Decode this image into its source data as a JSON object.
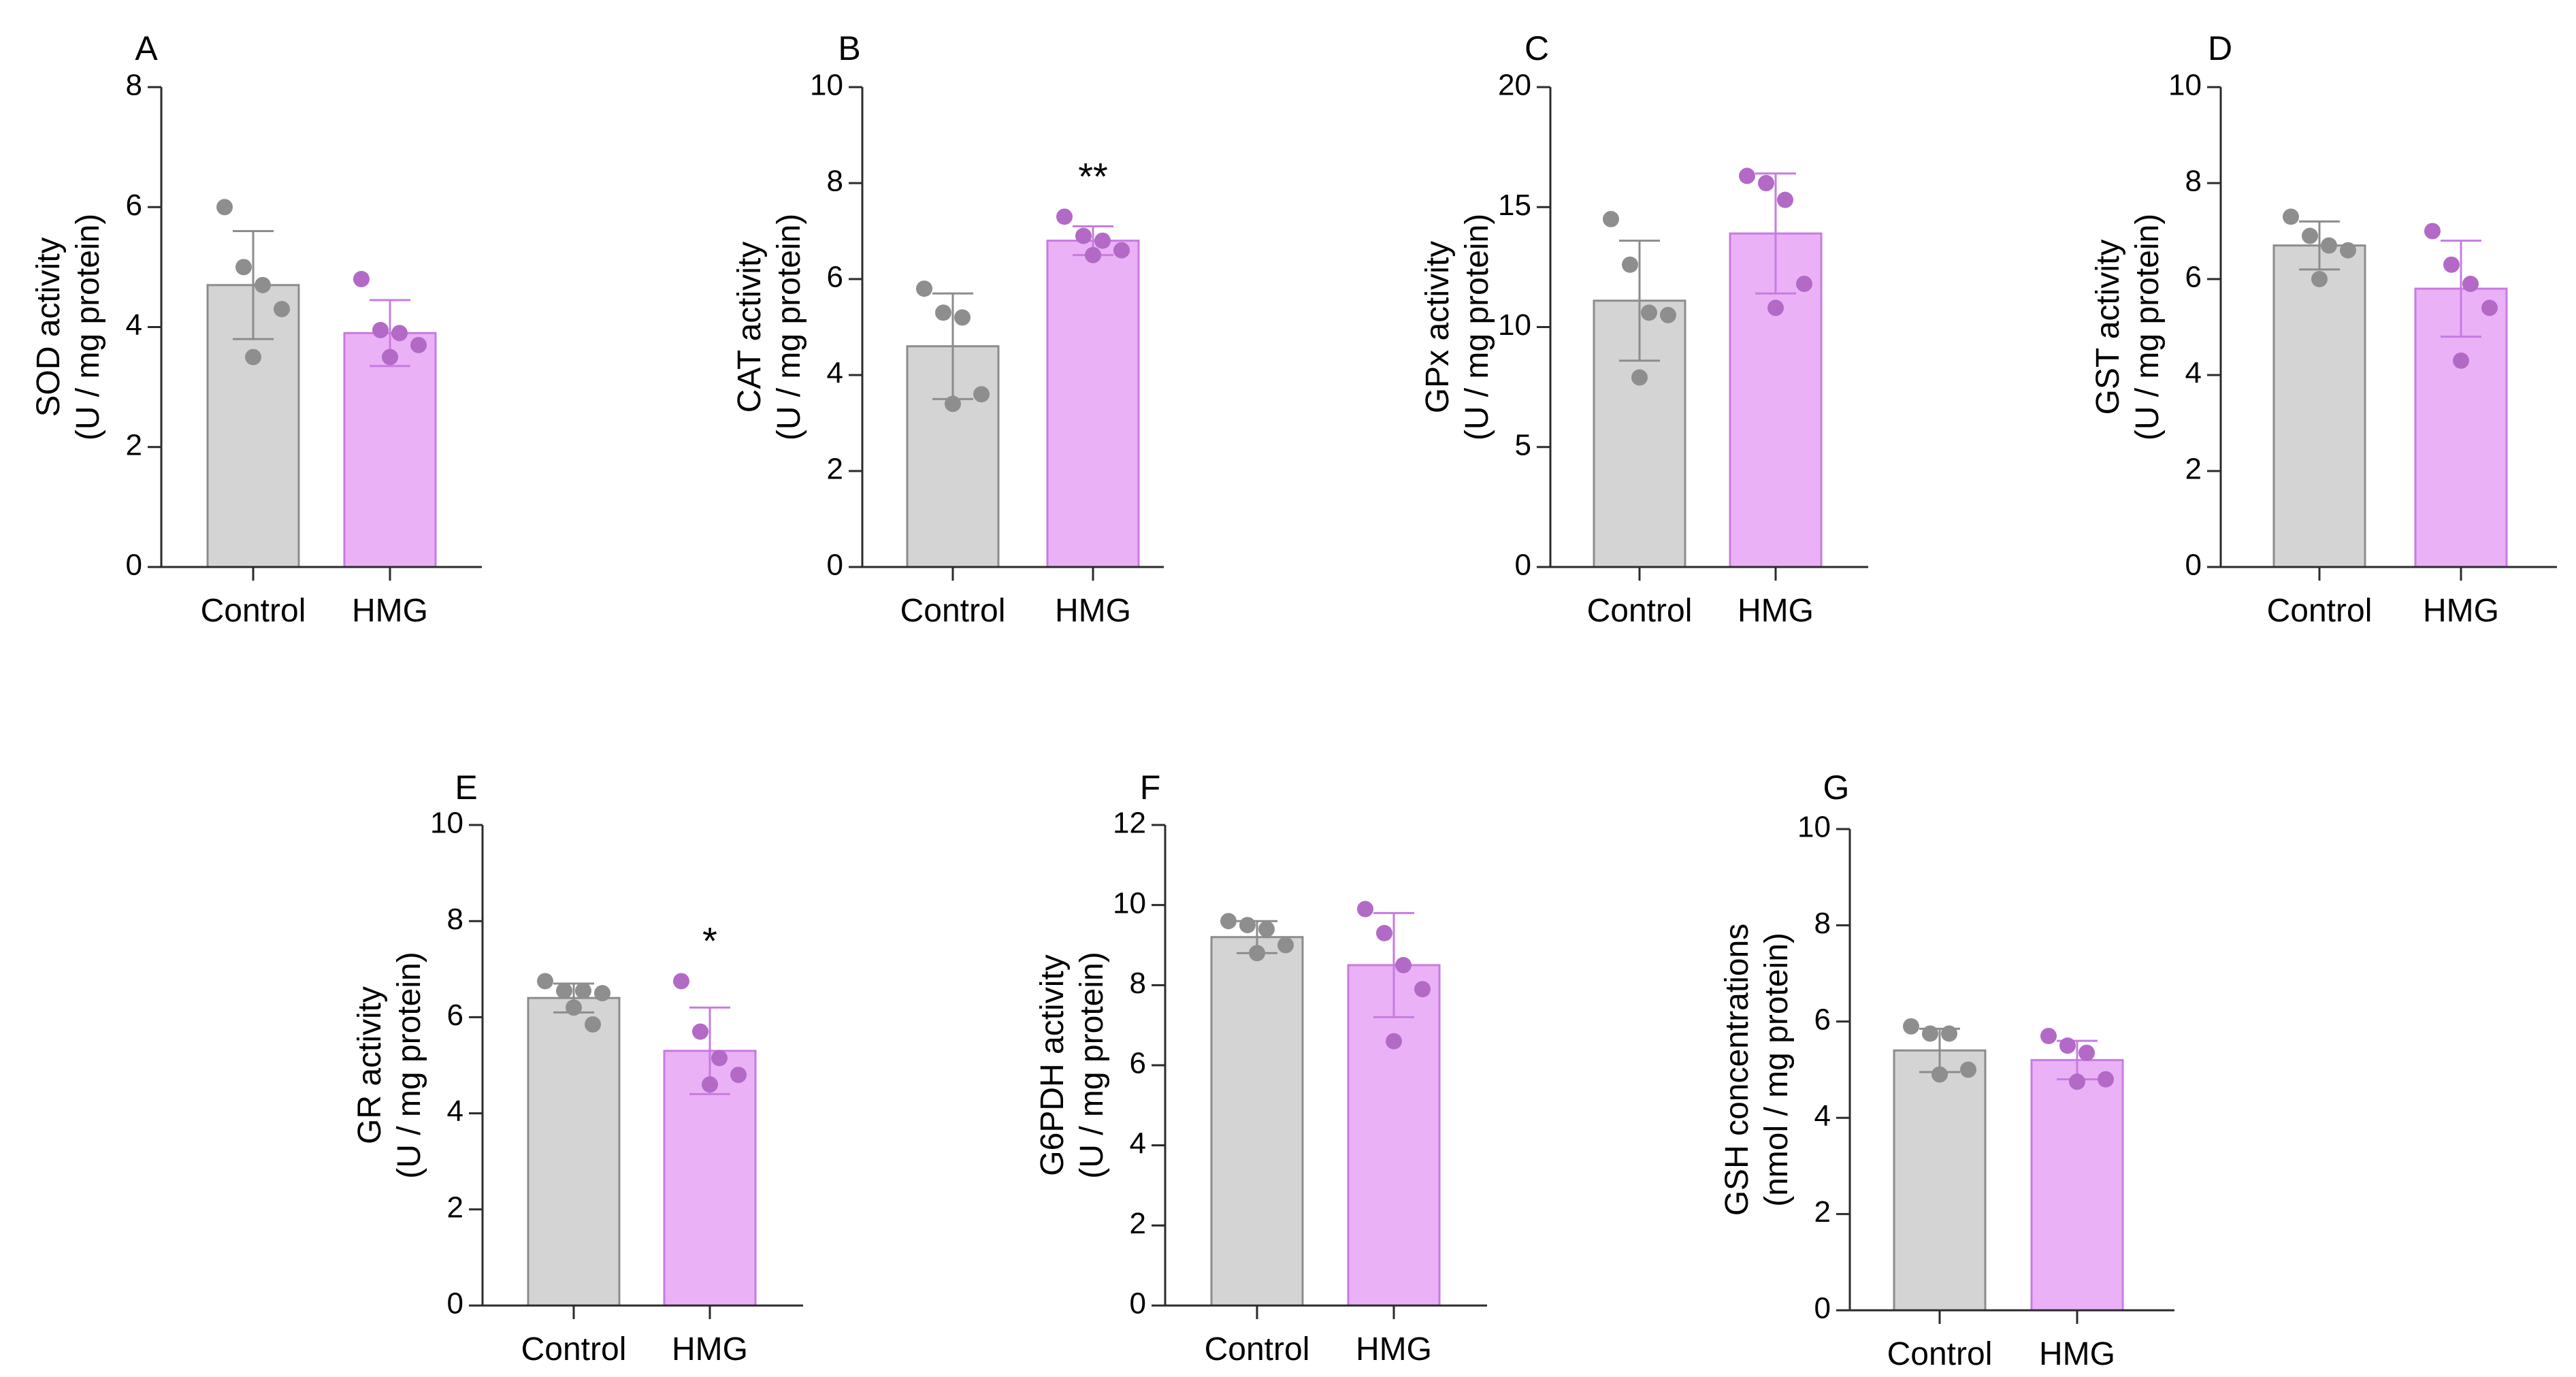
{
  "figure": {
    "colors": {
      "control_fill": "#d4d4d4",
      "control_stroke": "#8c8c8c",
      "control_point": "#8e8e8e",
      "hmg_fill": "#ebb1f7",
      "hmg_stroke": "#c77be0",
      "hmg_point": "#b26ac6",
      "axis": "#2b2b2b"
    }
  },
  "chart_data": [
    {
      "id": "A",
      "panel": "A",
      "type": "bar",
      "title": "SOD activity",
      "ylabel": [
        "SOD activity",
        "(U / mg protein)"
      ],
      "categories": [
        "Control",
        "HMG"
      ],
      "ylim": [
        0,
        8
      ],
      "yticks": [
        0,
        2,
        4,
        6,
        8
      ],
      "series": [
        {
          "name": "Control",
          "mean": 4.7,
          "sd": 0.9,
          "points": [
            6.0,
            5.0,
            4.7,
            4.3,
            3.5
          ]
        },
        {
          "name": "HMG",
          "mean": 3.9,
          "sd": 0.55,
          "points": [
            4.8,
            3.95,
            3.9,
            3.7,
            3.5
          ]
        }
      ],
      "significance": [
        "",
        ""
      ]
    },
    {
      "id": "B",
      "panel": "B",
      "type": "bar",
      "title": "CAT activity",
      "ylabel": [
        "CAT activity",
        "(U / mg protein)"
      ],
      "categories": [
        "Control",
        "HMG"
      ],
      "ylim": [
        0,
        10
      ],
      "yticks": [
        0,
        2,
        4,
        6,
        8,
        10
      ],
      "series": [
        {
          "name": "Control",
          "mean": 4.6,
          "sd": 1.1,
          "points": [
            5.8,
            5.3,
            5.2,
            3.6,
            3.4
          ]
        },
        {
          "name": "HMG",
          "mean": 6.8,
          "sd": 0.3,
          "points": [
            7.3,
            6.9,
            6.8,
            6.6,
            6.5
          ]
        }
      ],
      "significance": [
        "",
        "**"
      ]
    },
    {
      "id": "C",
      "panel": "C",
      "type": "bar",
      "title": "GPx activity",
      "ylabel": [
        "GPx activity",
        "(U / mg protein)"
      ],
      "categories": [
        "Control",
        "HMG"
      ],
      "ylim": [
        0,
        20
      ],
      "yticks": [
        0,
        5,
        10,
        15,
        20
      ],
      "series": [
        {
          "name": "Control",
          "mean": 11.1,
          "sd": 2.5,
          "points": [
            14.5,
            12.6,
            10.6,
            10.5,
            7.9
          ]
        },
        {
          "name": "HMG",
          "mean": 13.9,
          "sd": 2.5,
          "points": [
            16.3,
            16.0,
            15.3,
            11.8,
            10.8
          ]
        }
      ],
      "significance": [
        "",
        ""
      ]
    },
    {
      "id": "D",
      "panel": "D",
      "type": "bar",
      "title": "GST activity",
      "ylabel": [
        "GST activity",
        "(U / mg protein)"
      ],
      "categories": [
        "Control",
        "HMG"
      ],
      "ylim": [
        0,
        10
      ],
      "yticks": [
        0,
        2,
        4,
        6,
        8,
        10
      ],
      "series": [
        {
          "name": "Control",
          "mean": 6.7,
          "sd": 0.5,
          "points": [
            7.3,
            6.9,
            6.7,
            6.6,
            6.0
          ]
        },
        {
          "name": "HMG",
          "mean": 5.8,
          "sd": 1.0,
          "points": [
            7.0,
            6.3,
            5.9,
            5.4,
            4.3
          ]
        }
      ],
      "significance": [
        "",
        ""
      ]
    },
    {
      "id": "E",
      "panel": "E",
      "type": "bar",
      "title": "GR activity",
      "ylabel": [
        "GR activity",
        "(U / mg protein)"
      ],
      "categories": [
        "Control",
        "HMG"
      ],
      "ylim": [
        0,
        10
      ],
      "yticks": [
        0,
        2,
        4,
        6,
        8,
        10
      ],
      "series": [
        {
          "name": "Control",
          "mean": 6.4,
          "sd": 0.3,
          "points": [
            6.75,
            6.55,
            6.55,
            6.5,
            6.2,
            5.85
          ]
        },
        {
          "name": "HMG",
          "mean": 5.3,
          "sd": 0.9,
          "points": [
            6.75,
            5.7,
            5.15,
            4.8,
            4.6
          ]
        }
      ],
      "significance": [
        "",
        "*"
      ]
    },
    {
      "id": "F",
      "panel": "F",
      "type": "bar",
      "title": "G6PDH activity",
      "ylabel": [
        "G6PDH activity",
        "(U / mg protein)"
      ],
      "categories": [
        "Control",
        "HMG"
      ],
      "ylim": [
        0,
        12
      ],
      "yticks": [
        0,
        2,
        4,
        6,
        8,
        10,
        12
      ],
      "series": [
        {
          "name": "Control",
          "mean": 9.2,
          "sd": 0.4,
          "points": [
            9.6,
            9.5,
            9.4,
            9.0,
            8.8
          ]
        },
        {
          "name": "HMG",
          "mean": 8.5,
          "sd": 1.3,
          "points": [
            9.9,
            9.3,
            8.5,
            7.9,
            6.6
          ]
        }
      ],
      "significance": [
        "",
        ""
      ]
    },
    {
      "id": "G",
      "panel": "G",
      "type": "bar",
      "title": "GSH concentrations",
      "ylabel": [
        "GSH concentrations",
        "(nmol / mg protein)"
      ],
      "categories": [
        "Control",
        "HMG"
      ],
      "ylim": [
        0,
        10
      ],
      "yticks": [
        0,
        2,
        4,
        6,
        8,
        10
      ],
      "series": [
        {
          "name": "Control",
          "mean": 5.4,
          "sd": 0.45,
          "points": [
            5.9,
            5.75,
            5.75,
            5.0,
            4.9
          ]
        },
        {
          "name": "HMG",
          "mean": 5.2,
          "sd": 0.4,
          "points": [
            5.7,
            5.5,
            5.35,
            4.8,
            4.75
          ]
        }
      ],
      "significance": [
        "",
        ""
      ]
    }
  ]
}
